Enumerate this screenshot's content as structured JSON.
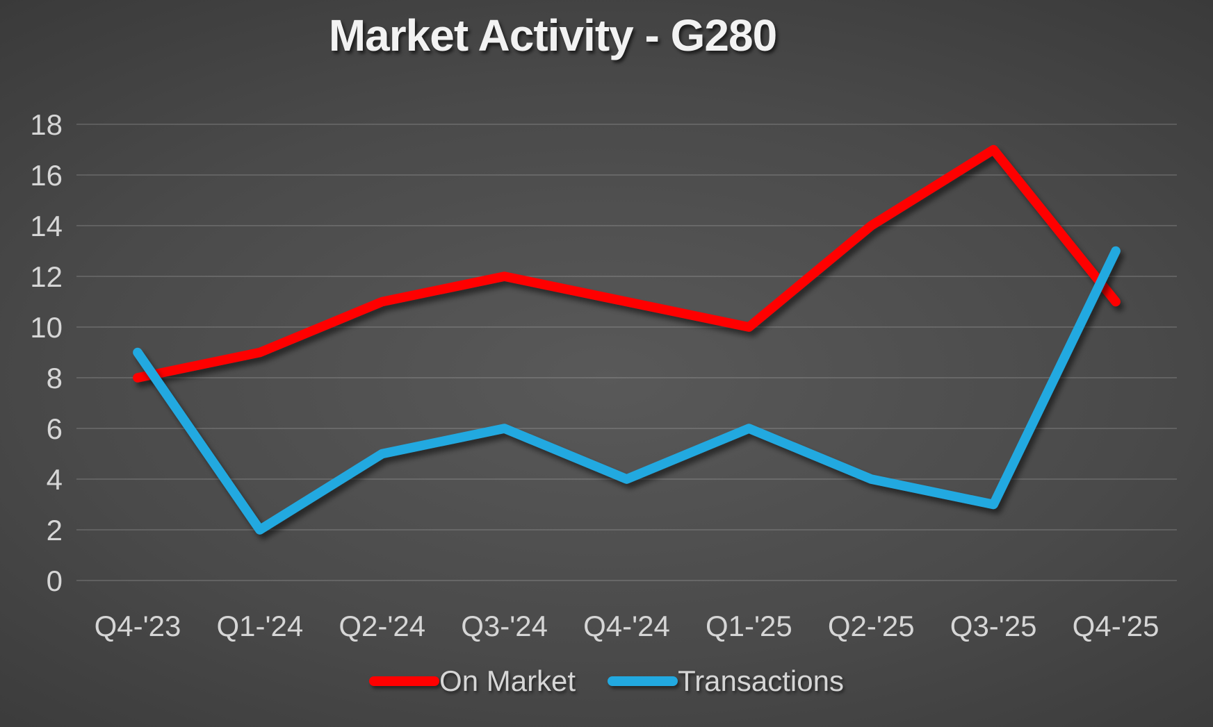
{
  "title": "Market Activity - G280",
  "chart_data": {
    "type": "line",
    "title": "Market Activity - G280",
    "categories": [
      "Q4-'23",
      "Q1-'24",
      "Q2-'24",
      "Q3-'24",
      "Q4-'24",
      "Q1-'25",
      "Q2-'25",
      "Q3-'25",
      "Q4-'25"
    ],
    "series": [
      {
        "name": "On Market",
        "color": "#ff0000",
        "values": [
          8,
          9,
          11,
          12,
          11,
          10,
          14,
          17,
          11
        ]
      },
      {
        "name": "Transactions",
        "color": "#22a9e0",
        "values": [
          9,
          2,
          5,
          6,
          4,
          6,
          4,
          3,
          13
        ]
      }
    ],
    "xlabel": "",
    "ylabel": "",
    "ylim": [
      0,
      18
    ],
    "ytick_step": 2,
    "grid": true,
    "legend_position": "bottom"
  },
  "colors": {
    "background_center": "#595959",
    "background_edge": "#262626",
    "gridline": "rgba(255,255,255,0.14)",
    "axis_label": "#d6d6d6",
    "title_text": "#f2f2f2"
  }
}
